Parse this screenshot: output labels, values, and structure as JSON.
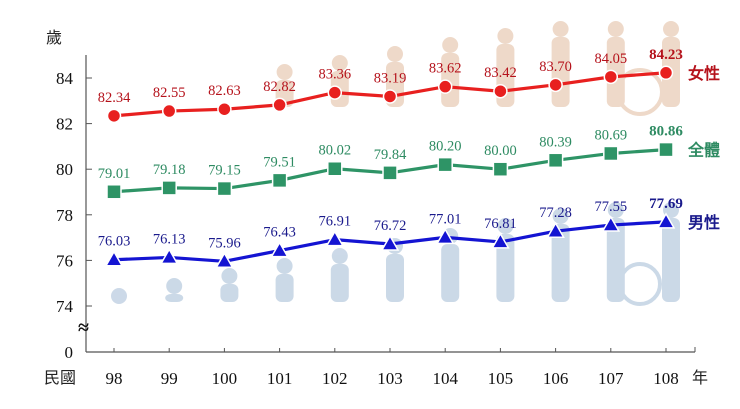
{
  "chart_data": {
    "type": "line",
    "title": "",
    "xlabel": "年",
    "x_prefix_label": "民國",
    "ylabel": "歲",
    "ylim": [
      74,
      84
    ],
    "y_axis_break": true,
    "y_ticks": [
      0,
      74,
      76,
      78,
      80,
      82,
      84
    ],
    "grid": false,
    "legend_position": "right, inline at line ends",
    "categories": [
      "98",
      "99",
      "100",
      "101",
      "102",
      "103",
      "104",
      "105",
      "106",
      "107",
      "108"
    ],
    "series": [
      {
        "name": "女性",
        "color": "#E8201F",
        "label_color": "#B5121B",
        "marker": "circle",
        "values": [
          82.34,
          82.55,
          82.63,
          82.82,
          83.36,
          83.19,
          83.62,
          83.42,
          83.7,
          84.05,
          84.23
        ],
        "labels": [
          "82.34",
          "82.55",
          "82.63",
          "82.82",
          "83.36",
          "83.19",
          "83.62",
          "83.42",
          "83.70",
          "84.05",
          "84.23"
        ]
      },
      {
        "name": "全體",
        "color": "#2E9466",
        "label_color": "#2E8B62",
        "marker": "square",
        "values": [
          79.01,
          79.18,
          79.15,
          79.51,
          80.02,
          79.84,
          80.2,
          80.0,
          80.39,
          80.69,
          80.86
        ],
        "labels": [
          "79.01",
          "79.18",
          "79.15",
          "79.51",
          "80.02",
          "79.84",
          "80.20",
          "80.00",
          "80.39",
          "80.69",
          "80.86"
        ]
      },
      {
        "name": "男性",
        "color": "#1414D2",
        "label_color": "#1A1A8C",
        "marker": "triangle",
        "values": [
          76.03,
          76.13,
          75.96,
          76.43,
          76.91,
          76.72,
          77.01,
          76.81,
          77.28,
          77.55,
          77.69
        ],
        "labels": [
          "76.03",
          "76.13",
          "75.96",
          "76.43",
          "76.91",
          "76.72",
          "77.01",
          "76.81",
          "77.28",
          "77.55",
          "77.69"
        ]
      }
    ],
    "annotations": [
      "Y axis break symbol ≈ between 0 and 74",
      "Last data point labels in bold"
    ]
  },
  "axis": {
    "y_unit": "歲",
    "x_prefix": "民國",
    "x_suffix": "年",
    "break_symbol": "≈"
  },
  "background_art": {
    "top": "life-stage silhouettes (female), beige",
    "bottom": "life-stage silhouettes (male), light blue",
    "top_color": "#E9CDB8",
    "bottom_color": "#BFD0E2"
  }
}
